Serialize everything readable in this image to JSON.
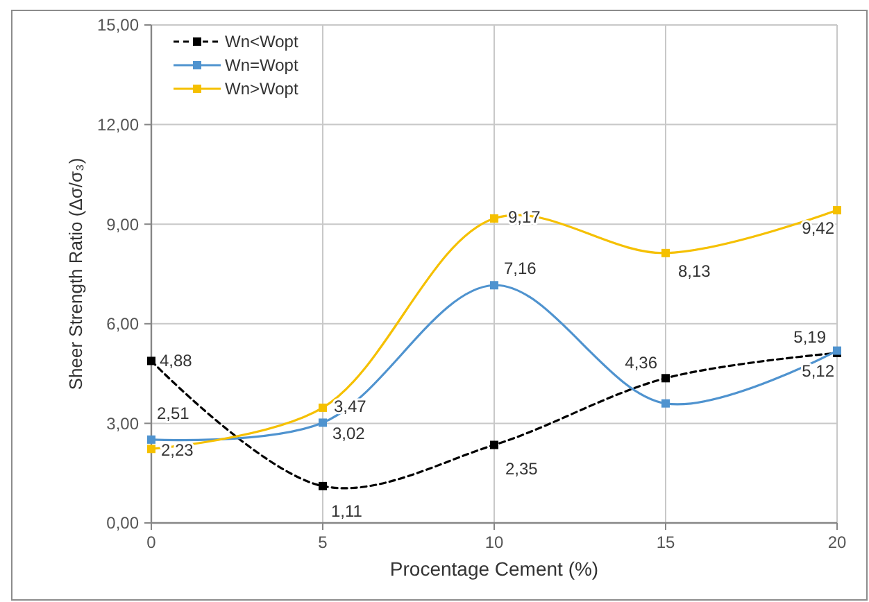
{
  "chart_data": {
    "type": "line",
    "xlabel": "Procentage Cement (%)",
    "ylabel": "Sheer Strength Ratio (Δσ/σ₃)",
    "x": [
      0,
      5,
      10,
      15,
      20
    ],
    "series": [
      {
        "name": "Wn<Wopt",
        "color": "#000000",
        "line_style": "dashed",
        "values": [
          4.88,
          1.11,
          2.35,
          4.36,
          5.12
        ],
        "value_labels": [
          "4,88",
          "1,11",
          "2,35",
          "4,36",
          "5,12"
        ]
      },
      {
        "name": "Wn=Wopt",
        "color": "#4f93cf",
        "line_style": "solid",
        "values": [
          2.51,
          3.02,
          7.16,
          3.6,
          5.19
        ],
        "value_labels": [
          "2,51",
          "3,02",
          "7,16",
          null,
          "5,19"
        ]
      },
      {
        "name": "Wn>Wopt",
        "color": "#f5c000",
        "line_style": "solid",
        "values": [
          2.23,
          3.47,
          9.17,
          8.13,
          9.42
        ],
        "value_labels": [
          "2,23",
          "3,47",
          "9,17",
          "8,13",
          "9,42"
        ]
      }
    ],
    "xlim": [
      0,
      20
    ],
    "xticks": [
      0,
      5,
      10,
      15,
      20
    ],
    "ylim": [
      0,
      15
    ],
    "yticks": [
      {
        "value": 0,
        "label": "0,00"
      },
      {
        "value": 3,
        "label": "3,00"
      },
      {
        "value": 6,
        "label": "6,00"
      },
      {
        "value": 9,
        "label": "9,00"
      },
      {
        "value": 12,
        "label": "12,00"
      },
      {
        "value": 15,
        "label": "15,00"
      }
    ],
    "grid": true,
    "legend": "top left",
    "marker": "square"
  }
}
